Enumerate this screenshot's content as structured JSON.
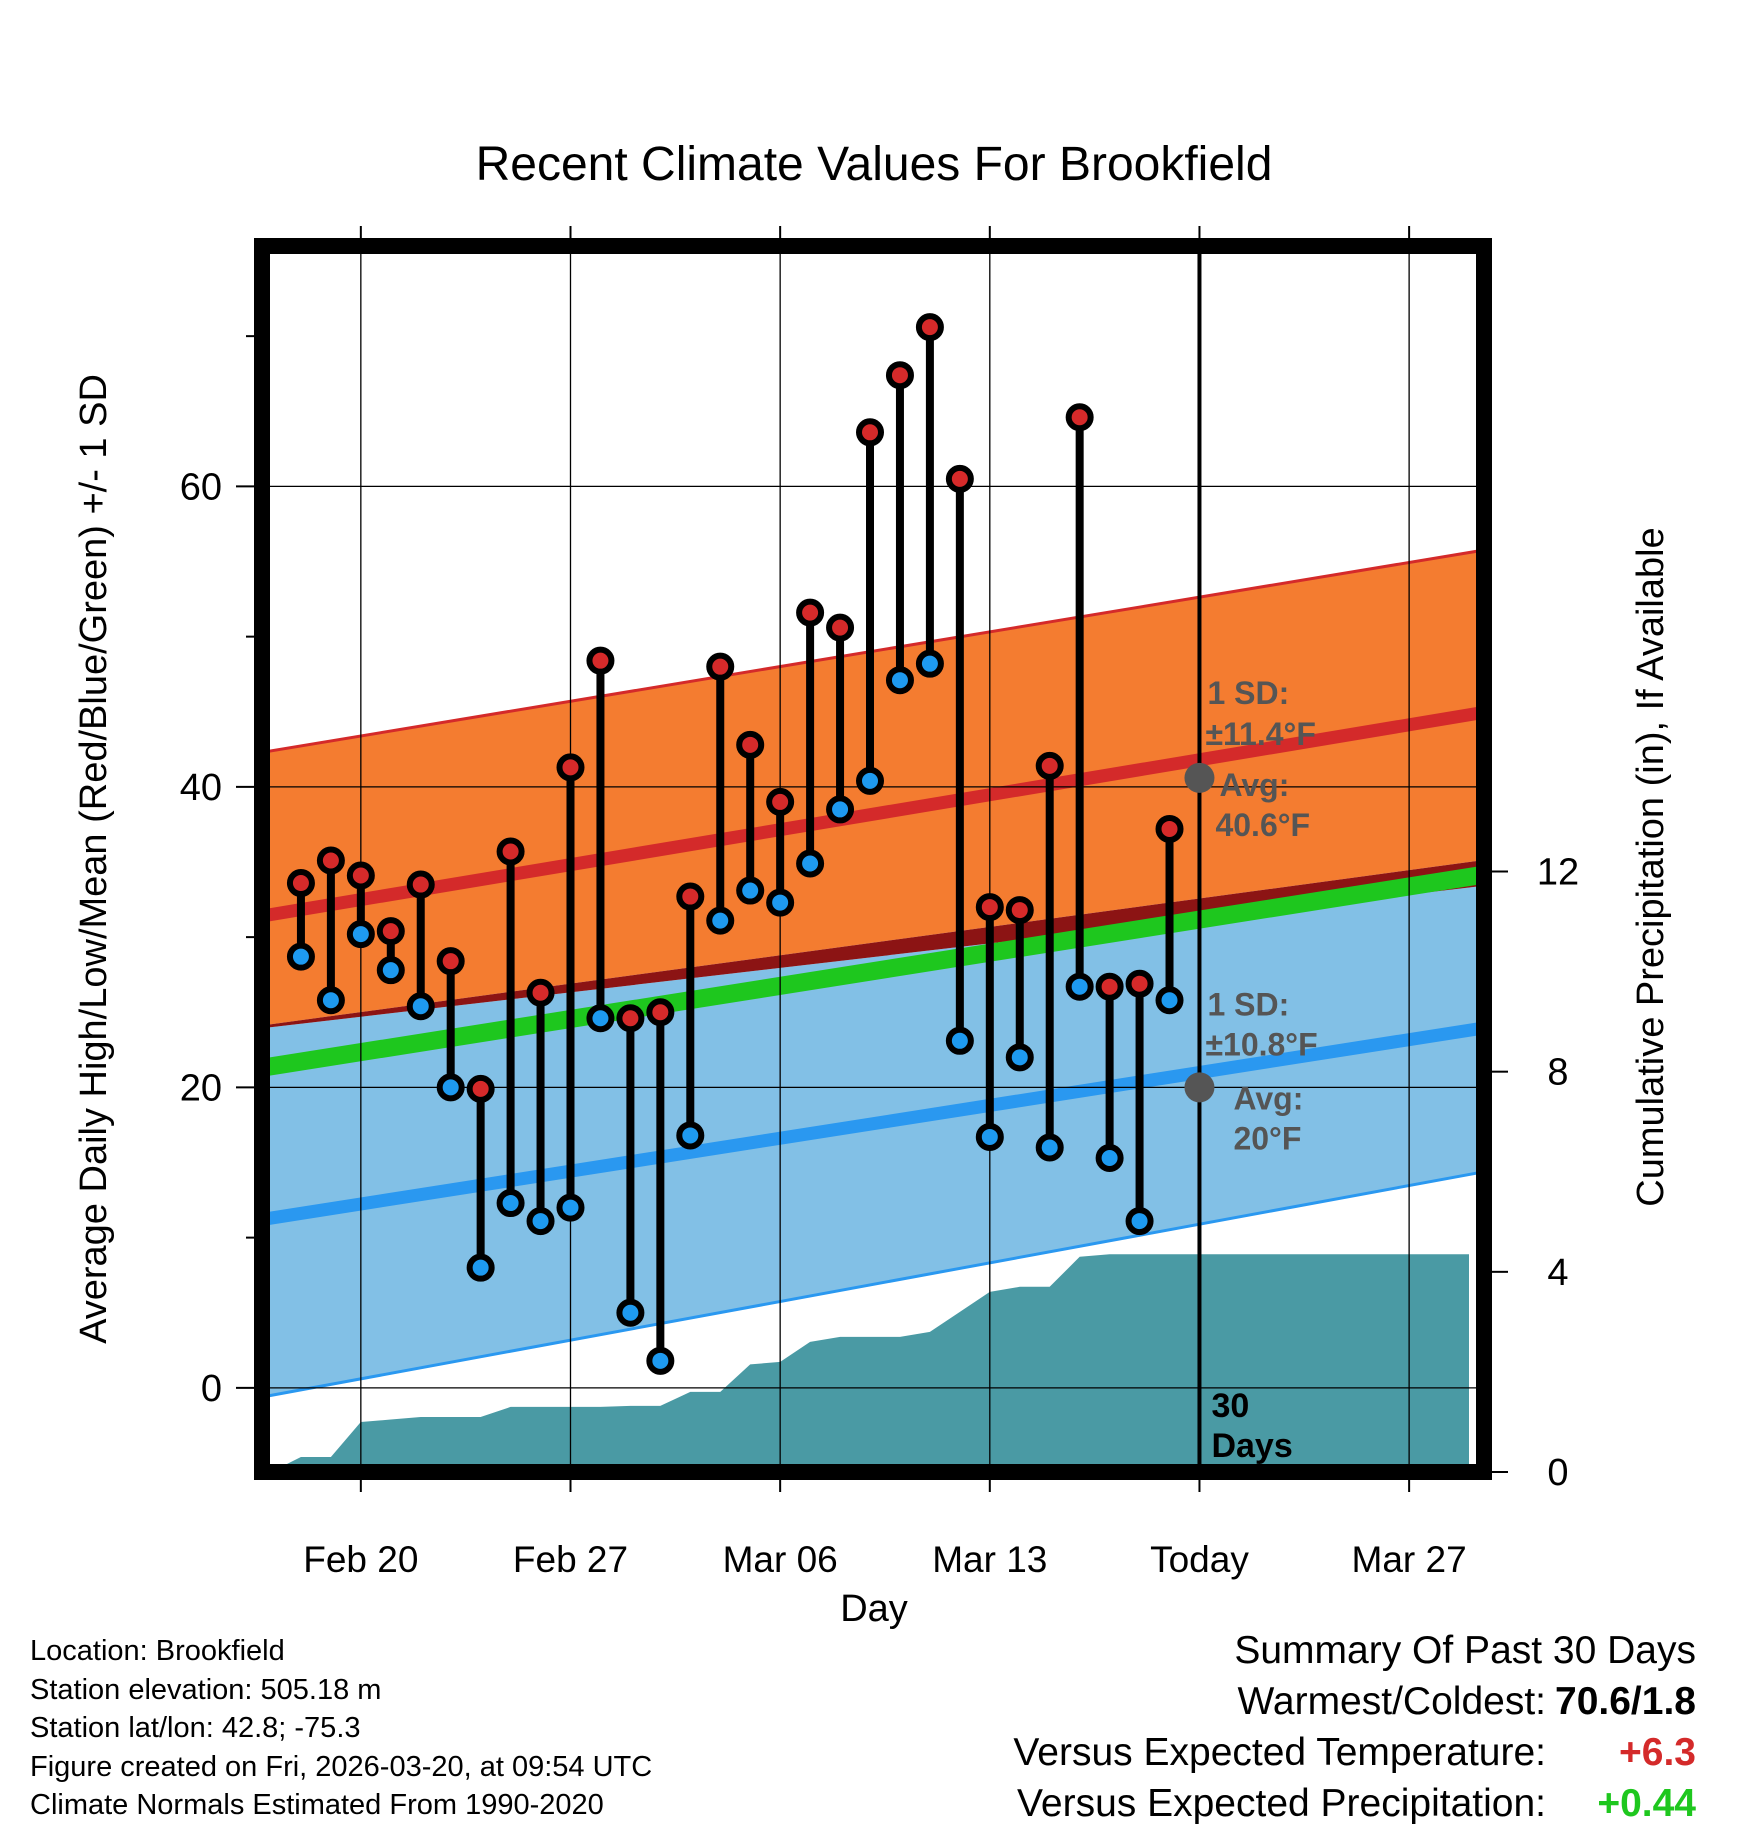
{
  "chart_data": {
    "type": "line",
    "title": "Recent Climate Values For Brookfield",
    "xlabel": "Day",
    "ylabel": "Average Daily High/Low/Mean (Red/Blue/Green) +/- 1 SD",
    "y2label": "Cumulative Precipitation (in), If Available",
    "x_tick_labels": [
      "Feb 20",
      "Feb 27",
      "Mar 06",
      "Mar 13",
      "Today",
      "Mar 27"
    ],
    "x_tick_days": [
      0,
      7,
      14,
      21,
      28,
      35
    ],
    "xlim": [
      -3.3,
      37.5
    ],
    "ylim": [
      -5.6,
      76
    ],
    "y_ticks": [
      0,
      20,
      40,
      60
    ],
    "y2lim": [
      0,
      24.5
    ],
    "y2_ticks": [
      0,
      4,
      8,
      12
    ],
    "today_day": 28,
    "today_label": "30 Days",
    "days": [
      -2,
      -1,
      0,
      1,
      2,
      3,
      4,
      5,
      6,
      7,
      8,
      9,
      10,
      11,
      12,
      13,
      14,
      15,
      16,
      17,
      18,
      19,
      20,
      21,
      22,
      23,
      24,
      25,
      26,
      27
    ],
    "highs": [
      33.6,
      35.1,
      34.1,
      30.4,
      33.5,
      28.4,
      19.9,
      35.7,
      26.3,
      41.3,
      48.4,
      24.6,
      25.0,
      32.7,
      48.0,
      42.8,
      39.0,
      51.6,
      50.6,
      63.6,
      67.4,
      70.6,
      60.5,
      32.0,
      31.8,
      41.4,
      64.6,
      26.7,
      26.9,
      37.2
    ],
    "lows": [
      28.7,
      25.8,
      30.2,
      27.8,
      25.4,
      20.0,
      8.0,
      12.3,
      11.1,
      12.0,
      24.6,
      5.0,
      1.8,
      16.8,
      31.1,
      33.1,
      32.3,
      34.9,
      38.5,
      40.4,
      47.1,
      48.2,
      23.1,
      16.7,
      22.0,
      16.0,
      26.7,
      15.3,
      11.1,
      25.8
    ],
    "normal_high": {
      "days": [
        -3,
        37
      ],
      "avg": [
        31.5,
        44.8
      ],
      "upper": [
        42.4,
        55.6
      ],
      "lower": [
        24.2,
        35.0
      ]
    },
    "normal_low": {
      "days": [
        -3,
        37
      ],
      "avg": [
        11.3,
        23.8
      ],
      "upper": [
        24.0,
        33.3
      ],
      "lower": [
        -0.5,
        14.2
      ]
    },
    "normal_mean": {
      "days": [
        -3,
        37
      ],
      "avg": [
        21.4,
        34.0
      ]
    },
    "annotations": {
      "high_sd": "1 SD:",
      "high_sd_value": "±11.4°F",
      "high_avg_label": "Avg:",
      "high_avg_value": "40.6°F",
      "high_avg_today": 40.6,
      "low_sd": "1 SD:",
      "low_sd_value": "±10.8°F",
      "low_avg_label": "Avg:",
      "low_avg_value": "20°F",
      "low_avg_today": 20
    },
    "precip_cumulative": {
      "days": [
        -3,
        -2,
        -1,
        0,
        1,
        2,
        3,
        4,
        5,
        6,
        7,
        8,
        9,
        10,
        11,
        12,
        13,
        14,
        15,
        16,
        17,
        18,
        19,
        20,
        21,
        22,
        23,
        24,
        25,
        26,
        27,
        28,
        37
      ],
      "values": [
        0.0,
        0.3,
        0.3,
        1.0,
        1.05,
        1.1,
        1.1,
        1.1,
        1.3,
        1.3,
        1.3,
        1.3,
        1.32,
        1.32,
        1.6,
        1.6,
        2.15,
        2.2,
        2.6,
        2.7,
        2.7,
        2.7,
        2.8,
        3.2,
        3.6,
        3.7,
        3.7,
        4.3,
        4.35,
        4.35,
        4.35,
        4.35,
        4.35
      ]
    },
    "colors": {
      "high_band": "#f47c30",
      "high_line": "#d42a2a",
      "low_band": "#82c0e6",
      "low_line": "#2a98f0",
      "mean_band": "#1ec71e",
      "overlap": "#8c1414",
      "precip": "#4a9aa4",
      "high_dot": "#d62a2a",
      "low_dot": "#1e9af0",
      "annotation": "#555555"
    }
  },
  "footer": {
    "location": "Location: Brookfield",
    "elevation": "Station elevation: 505.18 m",
    "latlon": "Station lat/lon: 42.8; -75.3",
    "created": "Figure created on Fri, 2026-03-20, at 09:54 UTC",
    "normals": "Climate Normals Estimated From 1990-2020"
  },
  "summary": {
    "title": "Summary Of Past 30 Days",
    "warm_label": "Warmest/Coldest:",
    "warm_value": "70.6/1.8",
    "temp_label": "Versus Expected Temperature:",
    "temp_value": "+6.3",
    "temp_color": "#d42a2a",
    "precip_label": "Versus Expected Precipitation:",
    "precip_value": "+0.44",
    "precip_color": "#1ec71e"
  }
}
